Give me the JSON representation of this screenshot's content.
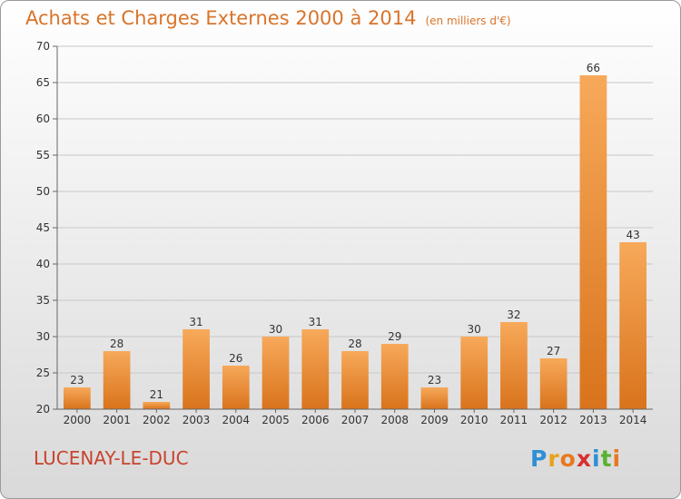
{
  "title": "Achats et Charges Externes 2000 à 2014",
  "unit": "(en milliers d'€)",
  "commune": "LUCENAY-LE-DUC",
  "logo": {
    "letters": [
      "P",
      "r",
      "o",
      "x",
      "i",
      "t",
      "i"
    ],
    "colors": [
      "#2e8fd6",
      "#e8a21e",
      "#e8781e",
      "#d92e2e",
      "#2e8fd6",
      "#58b230",
      "#e8781e"
    ]
  },
  "colors": {
    "bar_light": "#f7a95a",
    "bar_dark": "#d9731c",
    "title": "#d9742a",
    "commune": "#c8442e"
  },
  "chart_data": {
    "type": "bar",
    "categories": [
      "2000",
      "2001",
      "2002",
      "2003",
      "2004",
      "2005",
      "2006",
      "2007",
      "2008",
      "2009",
      "2010",
      "2011",
      "2012",
      "2013",
      "2014"
    ],
    "values": [
      23,
      28,
      21,
      31,
      26,
      30,
      31,
      28,
      29,
      23,
      30,
      32,
      27,
      66,
      43
    ],
    "ylim": [
      20,
      70
    ],
    "yticks": [
      20,
      25,
      30,
      35,
      40,
      45,
      50,
      55,
      60,
      65,
      70
    ],
    "grid": true
  }
}
